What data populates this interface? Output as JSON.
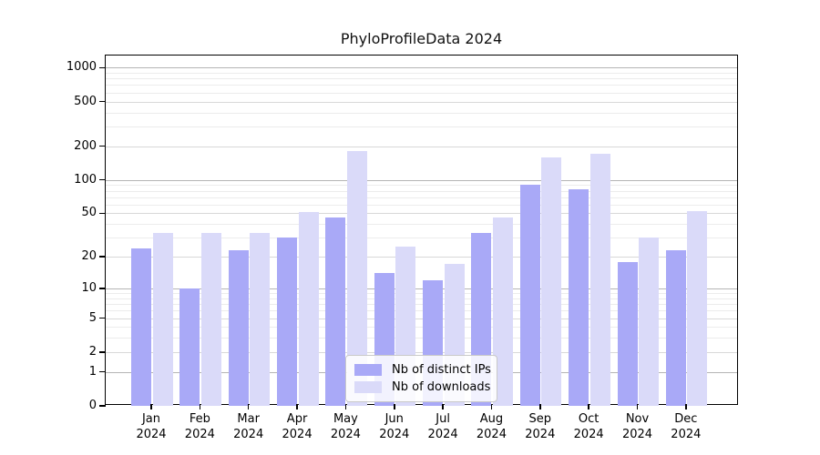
{
  "figure": {
    "title": "PhyloProfileData 2024"
  },
  "chart_data": {
    "type": "bar",
    "title": "PhyloProfileData 2024",
    "categories": [
      "Jan",
      "Feb",
      "Mar",
      "Apr",
      "May",
      "Jun",
      "Jul",
      "Aug",
      "Sep",
      "Oct",
      "Nov",
      "Dec"
    ],
    "x_year_label": "2024",
    "series": [
      {
        "name": "Nb of distinct IPs",
        "color": "#a9a9f7",
        "values": [
          24,
          10,
          23,
          30,
          46,
          14,
          12,
          33,
          91,
          82,
          18,
          23
        ]
      },
      {
        "name": "Nb of downloads",
        "color": "#dadaf9",
        "values": [
          33,
          33,
          33,
          51,
          180,
          25,
          17,
          46,
          160,
          170,
          30,
          52
        ]
      }
    ],
    "y_scale": "log1p",
    "y_ticks": [
      0,
      1,
      2,
      5,
      10,
      20,
      50,
      100,
      200,
      500,
      1000
    ],
    "y_minor_gridlines": [
      3,
      4,
      6,
      7,
      8,
      9,
      30,
      40,
      60,
      70,
      80,
      90,
      300,
      400,
      600,
      700,
      800,
      900
    ],
    "y_mid_gridlines": [
      2,
      5,
      20,
      50,
      200,
      500
    ],
    "y_major_gridlines": [
      1,
      10,
      100,
      1000
    ],
    "ylim": [
      0,
      1100
    ],
    "grid": true,
    "legend_position": "bottom-center"
  },
  "colors": {
    "background": "#ffffff",
    "spine": "#000000",
    "major_grid": "#b5b5b5",
    "mid_grid": "#d8d8d8",
    "minor_grid": "#ececec"
  }
}
